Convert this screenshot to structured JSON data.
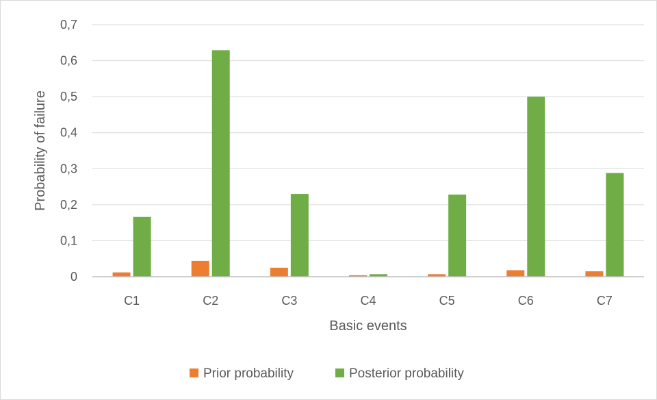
{
  "chart_data": {
    "type": "bar",
    "categories": [
      "C1",
      "C2",
      "C3",
      "C4",
      "C5",
      "C6",
      "C7"
    ],
    "series": [
      {
        "name": "Prior probability",
        "color": "#ed7d31",
        "values": [
          0.012,
          0.044,
          0.025,
          0.004,
          0.007,
          0.018,
          0.015
        ]
      },
      {
        "name": "Posterior probability",
        "color": "#70ad47",
        "values": [
          0.166,
          0.629,
          0.23,
          0.007,
          0.228,
          0.5,
          0.288
        ]
      }
    ],
    "xlabel": "Basic events",
    "ylabel": "Probability of failure",
    "ylim": [
      0,
      0.7
    ],
    "yticks": [
      "0",
      "0,1",
      "0,2",
      "0,3",
      "0,4",
      "0,5",
      "0,6",
      "0,7"
    ],
    "grid": true,
    "legend_position": "bottom"
  }
}
